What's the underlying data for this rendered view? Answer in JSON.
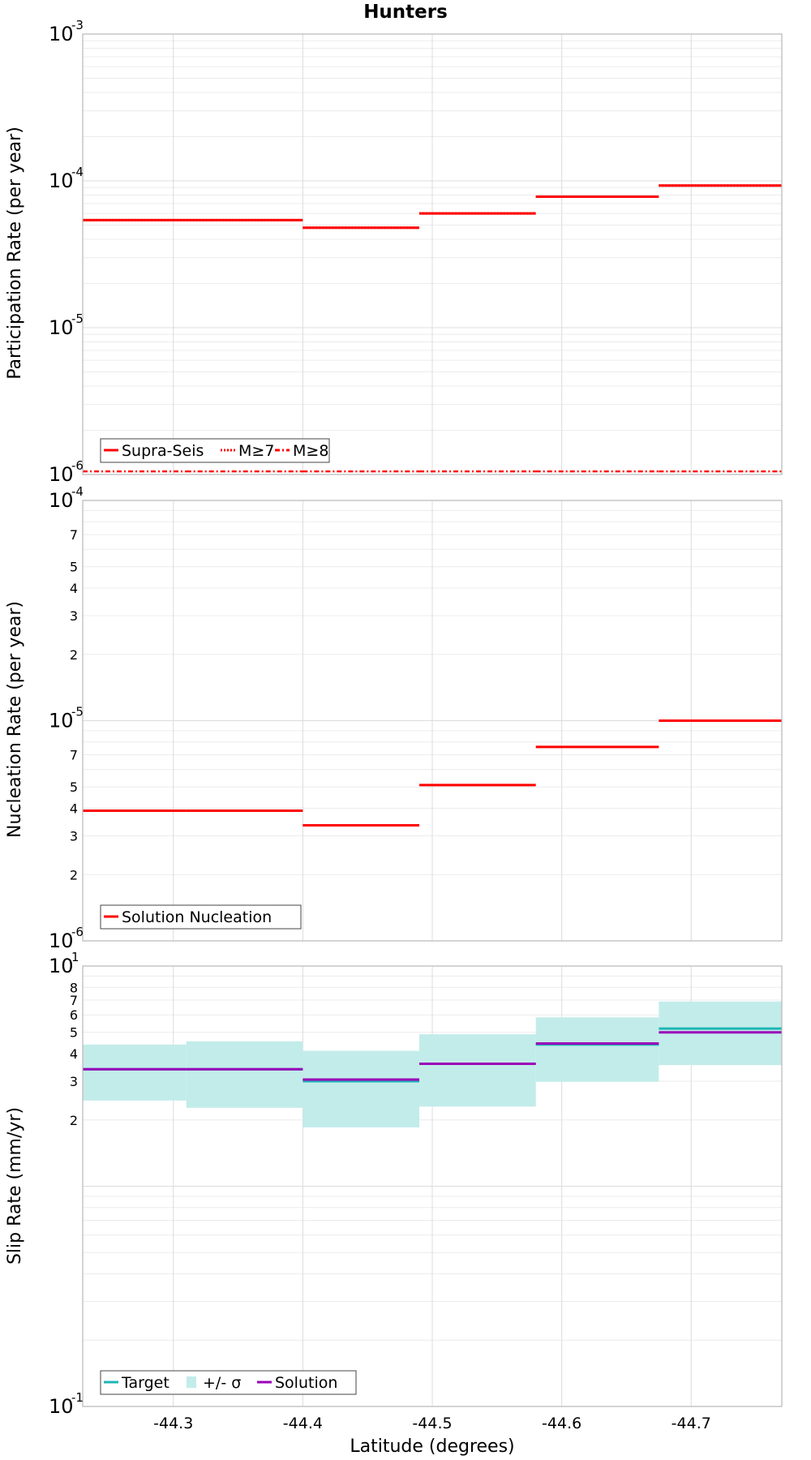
{
  "figure_title": "Hunters",
  "x_axis": {
    "label": "Latitude (degrees)",
    "ticks": [
      -44.3,
      -44.4,
      -44.5,
      -44.6,
      -44.7
    ],
    "range": [
      -44.23,
      -44.77
    ],
    "direction": "decreasing-left-to-right"
  },
  "colors": {
    "supra_seis": "#ff0000",
    "nucleation": "#ff0000",
    "target": "#1fb5b5",
    "sigma_band": "#c2ecea",
    "solution": "#9b00b8"
  },
  "chart_data": [
    {
      "name": "participation",
      "type": "line",
      "style": "step",
      "ylabel": "Participation Rate (per year)",
      "yscale": "log",
      "ylim": [
        1e-06,
        0.001
      ],
      "grid": true,
      "legend_position": "bottom-left",
      "y_major_ticks": [
        {
          "base": "10",
          "exp": "-3",
          "value": 0.001
        },
        {
          "base": "10",
          "exp": "-4",
          "value": 0.0001
        },
        {
          "base": "10",
          "exp": "-5",
          "value": 1e-05
        },
        {
          "base": "10",
          "exp": "-6",
          "value": 1e-06
        }
      ],
      "segments": [
        -44.23,
        -44.31,
        -44.4,
        -44.49,
        -44.58,
        -44.675,
        -44.77
      ],
      "series": [
        {
          "name": "Supra-Seis",
          "linestyle": "solid",
          "values": [
            5.4e-05,
            5.4e-05,
            4.8e-05,
            6e-05,
            7.8e-05,
            9.3e-05
          ]
        },
        {
          "name": "M≥7",
          "linestyle": "dotted",
          "values": [
            5.4e-05,
            5.4e-05,
            4.8e-05,
            6e-05,
            7.8e-05,
            9.3e-05
          ]
        },
        {
          "name": "M≥8",
          "linestyle": "dashdot",
          "values": [
            1.05e-06,
            1.05e-06,
            1.05e-06,
            1.05e-06,
            1.05e-06,
            1.05e-06
          ]
        }
      ]
    },
    {
      "name": "nucleation",
      "type": "line",
      "style": "step",
      "ylabel": "Nucleation Rate (per year)",
      "yscale": "log",
      "ylim": [
        1e-06,
        0.0001
      ],
      "grid": true,
      "legend_position": "bottom-left",
      "y_major_ticks": [
        {
          "base": "10",
          "exp": "-4",
          "value": 0.0001
        },
        {
          "base": "10",
          "exp": "-5",
          "value": 1e-05
        },
        {
          "base": "10",
          "exp": "-6",
          "value": 1e-06
        }
      ],
      "y_minor_tick_labels": [
        {
          "label": "7",
          "value": 7e-05
        },
        {
          "label": "5",
          "value": 5e-05
        },
        {
          "label": "4",
          "value": 4e-05
        },
        {
          "label": "3",
          "value": 3e-05
        },
        {
          "label": "2",
          "value": 2e-05
        },
        {
          "label": "7",
          "value": 7e-06
        },
        {
          "label": "5",
          "value": 5e-06
        },
        {
          "label": "4",
          "value": 4e-06
        },
        {
          "label": "3",
          "value": 3e-06
        },
        {
          "label": "2",
          "value": 2e-06
        }
      ],
      "segments": [
        -44.23,
        -44.31,
        -44.4,
        -44.49,
        -44.58,
        -44.675,
        -44.77
      ],
      "series": [
        {
          "name": "Solution Nucleation",
          "linestyle": "solid",
          "values": [
            3.9e-06,
            3.9e-06,
            3.35e-06,
            5.1e-06,
            7.6e-06,
            1e-05
          ]
        }
      ]
    },
    {
      "name": "slip",
      "type": "area",
      "style": "step",
      "ylabel": "Slip Rate (mm/yr)",
      "yscale": "log",
      "ylim": [
        0.1,
        10
      ],
      "grid": true,
      "legend_position": "bottom-left",
      "y_major_ticks": [
        {
          "base": "10",
          "exp": "1",
          "value": 10
        },
        {
          "base": "10",
          "exp": "-1",
          "value": 0.1
        }
      ],
      "y_minor_tick_labels": [
        {
          "label": "8",
          "value": 8
        },
        {
          "label": "7",
          "value": 7
        },
        {
          "label": "6",
          "value": 6
        },
        {
          "label": "5",
          "value": 5
        },
        {
          "label": "4",
          "value": 4
        },
        {
          "label": "3",
          "value": 3
        },
        {
          "label": "2",
          "value": 2
        }
      ],
      "segments": [
        -44.23,
        -44.31,
        -44.4,
        -44.49,
        -44.58,
        -44.675,
        -44.77
      ],
      "series": [
        {
          "name": "Target",
          "linestyle": "solid",
          "values": [
            3.4,
            3.4,
            3.0,
            3.6,
            4.4,
            5.2
          ]
        },
        {
          "name": "+/- σ",
          "linestyle": "fill",
          "lower": [
            2.45,
            2.27,
            1.85,
            2.3,
            2.98,
            3.55
          ],
          "upper": [
            4.4,
            4.55,
            4.12,
            4.9,
            5.85,
            6.9
          ]
        },
        {
          "name": "Solution",
          "linestyle": "solid",
          "values": [
            3.4,
            3.4,
            3.05,
            3.6,
            4.45,
            5.0
          ]
        }
      ]
    }
  ]
}
